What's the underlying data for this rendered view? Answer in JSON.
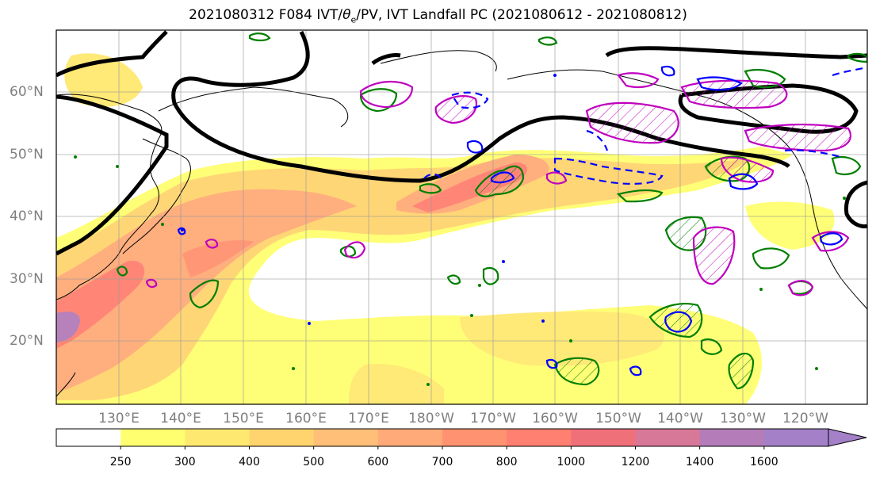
{
  "title_main": "2021080312 F084 IVT/",
  "title_theta": "θ",
  "title_sub": "e",
  "title_rest": "/PV, IVT Landfall PC (2021080612 - 2021080812)",
  "lat_labels": [
    "60°N",
    "50°N",
    "40°N",
    "30°N",
    "20°N"
  ],
  "lon_labels": [
    "130°E",
    "140°E",
    "150°E",
    "160°E",
    "170°E",
    "180°W",
    "170°W",
    "160°W",
    "150°W",
    "140°W",
    "130°W",
    "120°W"
  ],
  "colorbar": {
    "ticks": [
      "250",
      "300",
      "400",
      "500",
      "600",
      "700",
      "800",
      "1000",
      "1200",
      "1400",
      "1600"
    ],
    "colors": [
      "#ffffff",
      "#ffff70",
      "#ffe870",
      "#ffd46e",
      "#ffbf78",
      "#ffaa78",
      "#ff9270",
      "#ff8070",
      "#f0707a",
      "#d87898",
      "#b47cb8",
      "#a480c8"
    ]
  },
  "legend_colors": {
    "jet_contour": "#000000",
    "green_contour": "#007f00",
    "blue_contour": "#0000ff",
    "magenta_contour": "#bf00bf"
  }
}
